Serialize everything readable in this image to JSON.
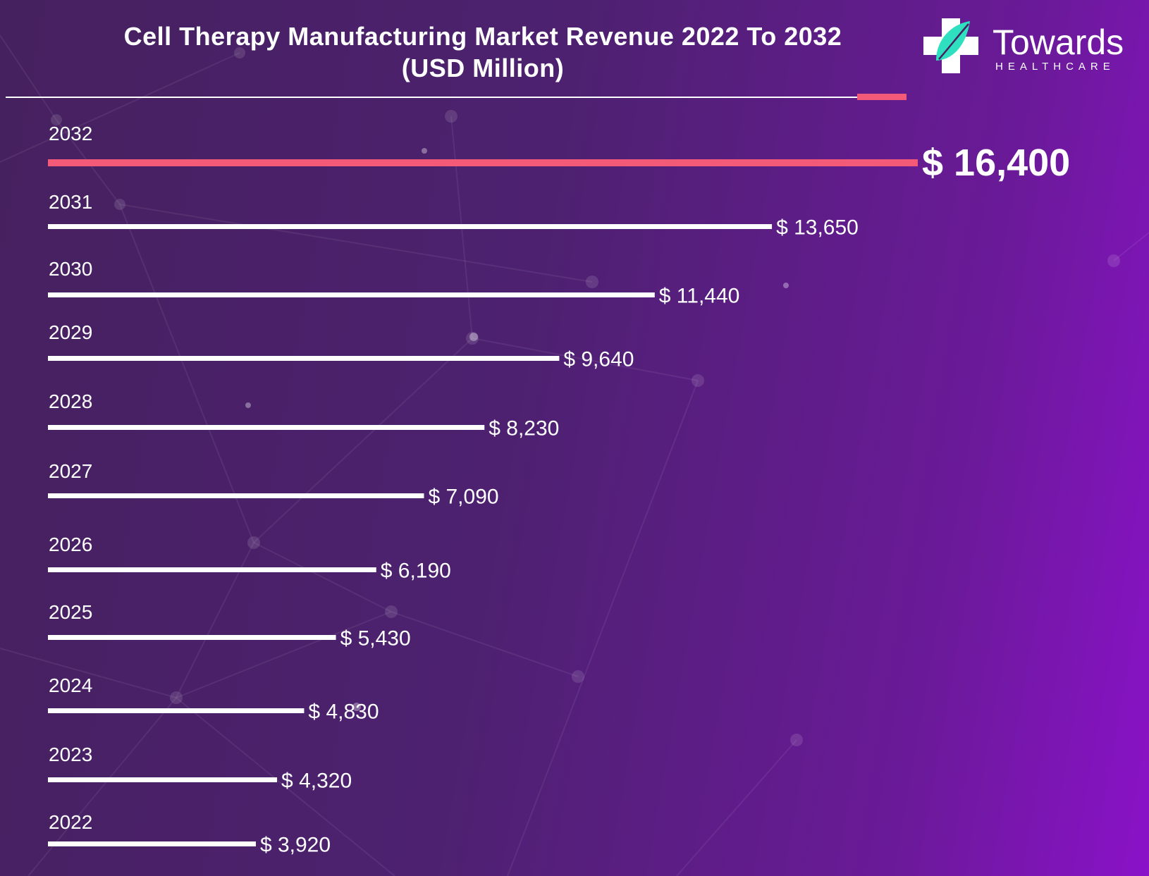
{
  "header": {
    "title_line1": "Cell Therapy Manufacturing Market Revenue 2022 To 2032",
    "title_line2": "(USD Million)"
  },
  "logo": {
    "word": "Towards",
    "sub": "HEALTHCARE"
  },
  "colors": {
    "highlight": "#f25a78",
    "bar": "#ffffff",
    "logo_teal": "#2fe0c0"
  },
  "chart_data": {
    "type": "bar",
    "orientation": "horizontal",
    "title": "Cell Therapy Manufacturing Market Revenue 2022 To 2032 (USD Million)",
    "categories": [
      "2032",
      "2031",
      "2030",
      "2029",
      "2028",
      "2027",
      "2026",
      "2025",
      "2024",
      "2023",
      "2022"
    ],
    "values": [
      16400,
      13650,
      11440,
      9640,
      8230,
      7090,
      6190,
      5430,
      4830,
      4320,
      3920
    ],
    "value_labels": [
      "$ 16,400",
      "$ 13,650",
      "$ 11,440",
      "$ 9,640",
      "$ 8,230",
      "$ 7,090",
      "$ 6,190",
      "$ 5,430",
      "$ 4,830",
      "$ 4,320",
      "$ 3,920"
    ],
    "highlight_category": "2032",
    "xlim": [
      0,
      16400
    ],
    "grid": false,
    "legend": "none"
  }
}
